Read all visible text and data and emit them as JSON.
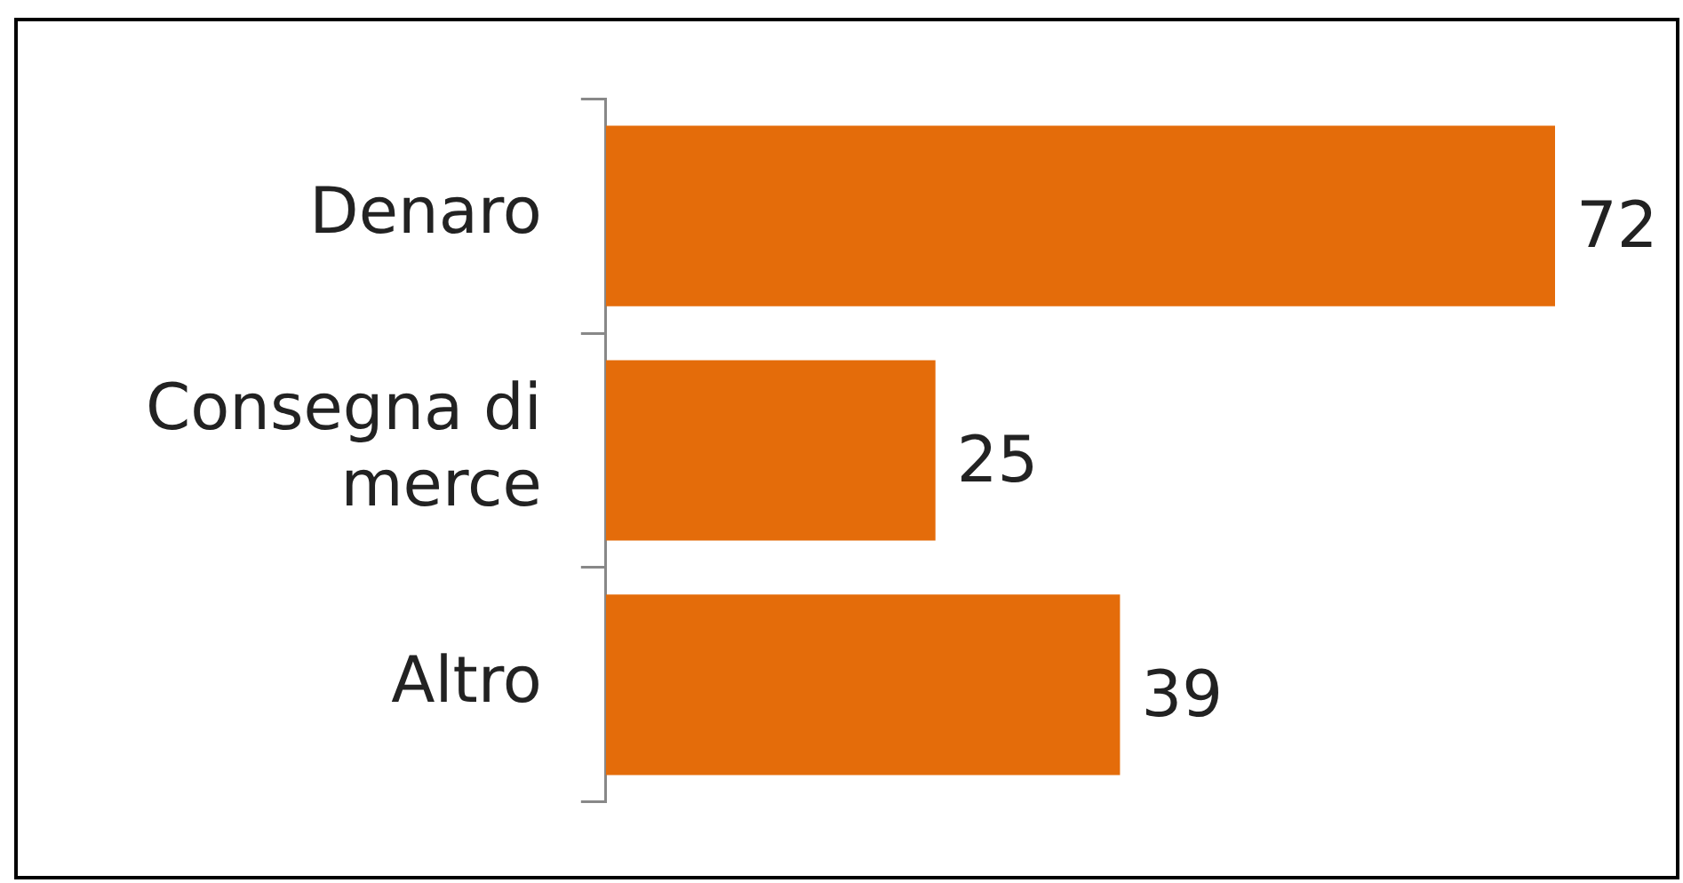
{
  "chart_data": {
    "type": "bar",
    "orientation": "horizontal",
    "categories": [
      "Denaro",
      "Consegna di merce",
      "Altro"
    ],
    "values": [
      72,
      25,
      39
    ],
    "color": "#e46c0a",
    "tick_labels": "y",
    "data_labels": true
  }
}
